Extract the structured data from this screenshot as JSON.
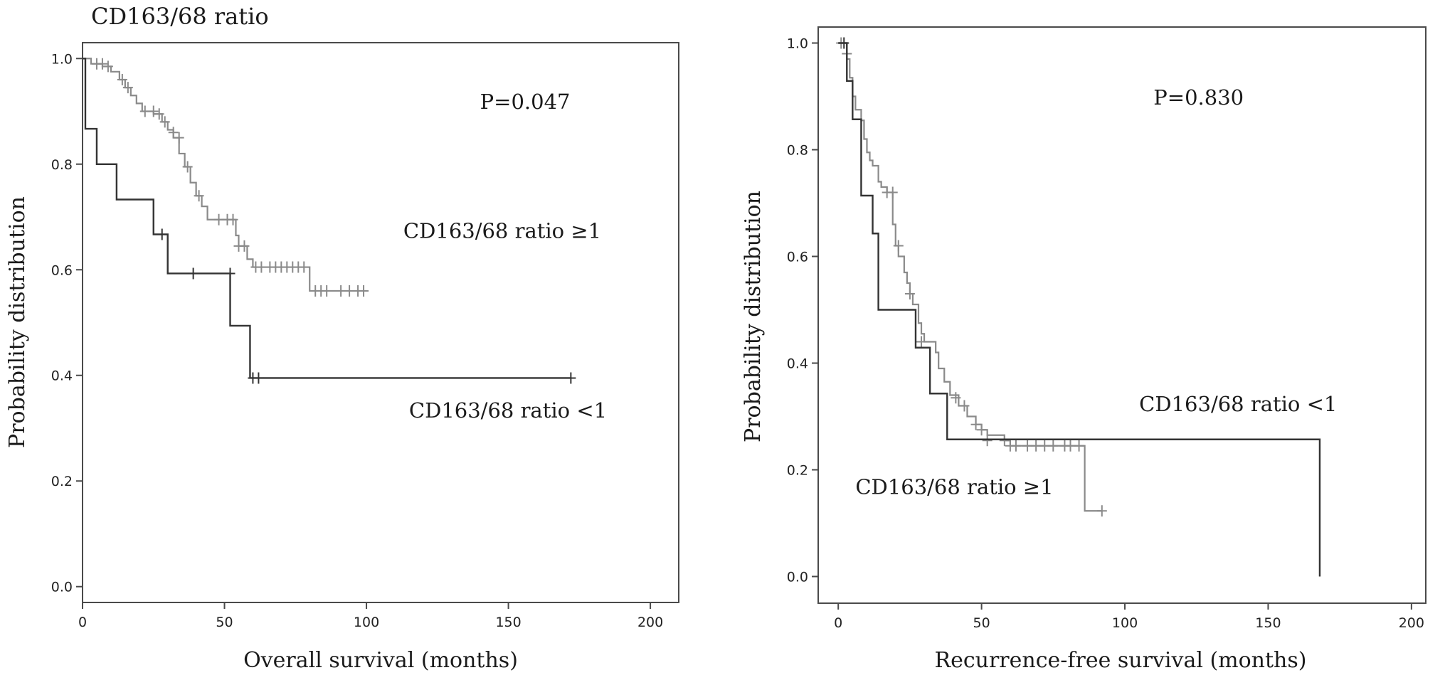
{
  "figure": {
    "title": "CD163/68  ratio"
  },
  "chart_data": [
    {
      "type": "line",
      "subtype": "kaplan-meier",
      "xlabel": "Overall survival (months)",
      "ylabel": "Probability distribution",
      "xlim": [
        0,
        210
      ],
      "ylim": [
        -0.03,
        1.03
      ],
      "xticks": [
        0,
        50,
        100,
        150,
        200
      ],
      "yticks": [
        0.0,
        0.2,
        0.4,
        0.6,
        0.8,
        1.0
      ],
      "xtick_labels": [
        "0",
        "50",
        "100",
        "150",
        "200"
      ],
      "ytick_labels": [
        "0.0",
        "0.2",
        "0.4",
        "0.6",
        "0.8",
        "1.0"
      ],
      "grid": false,
      "annotations": [
        {
          "text": "P=0.047",
          "x": 140,
          "y": 0.905
        },
        {
          "text": "CD163/68 ratio ≥1",
          "x": 113,
          "y": 0.66
        },
        {
          "text": "CD163/68 ratio <1",
          "x": 115,
          "y": 0.32
        }
      ],
      "series": [
        {
          "color": "#8a8a8a",
          "steps": [
            [
              0,
              1.0
            ],
            [
              3,
              0.99
            ],
            [
              7,
              0.985
            ],
            [
              10,
              0.975
            ],
            [
              13,
              0.96
            ],
            [
              15,
              0.945
            ],
            [
              17,
              0.93
            ],
            [
              19,
              0.915
            ],
            [
              21,
              0.9
            ],
            [
              25,
              0.895
            ],
            [
              28,
              0.88
            ],
            [
              30,
              0.865
            ],
            [
              32,
              0.85
            ],
            [
              34,
              0.82
            ],
            [
              36,
              0.795
            ],
            [
              38,
              0.765
            ],
            [
              40,
              0.74
            ],
            [
              42,
              0.72
            ],
            [
              44,
              0.695
            ],
            [
              54,
              0.665
            ],
            [
              55,
              0.645
            ],
            [
              58,
              0.62
            ],
            [
              60,
              0.605
            ],
            [
              80,
              0.56
            ],
            [
              100,
              0.56
            ]
          ],
          "censored": [
            [
              5,
              0.99
            ],
            [
              7,
              0.99
            ],
            [
              9,
              0.985
            ],
            [
              14,
              0.96
            ],
            [
              16,
              0.945
            ],
            [
              22,
              0.9
            ],
            [
              25,
              0.9
            ],
            [
              27,
              0.895
            ],
            [
              29,
              0.88
            ],
            [
              32,
              0.86
            ],
            [
              34,
              0.85
            ],
            [
              37,
              0.795
            ],
            [
              41,
              0.74
            ],
            [
              48,
              0.695
            ],
            [
              51,
              0.695
            ],
            [
              53,
              0.695
            ],
            [
              55,
              0.645
            ],
            [
              57,
              0.645
            ],
            [
              61,
              0.605
            ],
            [
              63,
              0.605
            ],
            [
              66,
              0.605
            ],
            [
              68,
              0.605
            ],
            [
              70,
              0.605
            ],
            [
              72,
              0.605
            ],
            [
              74,
              0.605
            ],
            [
              76,
              0.605
            ],
            [
              78,
              0.605
            ],
            [
              82,
              0.56
            ],
            [
              84,
              0.56
            ],
            [
              86,
              0.56
            ],
            [
              91,
              0.56
            ],
            [
              94,
              0.56
            ],
            [
              97,
              0.56
            ],
            [
              99,
              0.56
            ]
          ]
        },
        {
          "color": "#333333",
          "steps": [
            [
              0,
              1.0
            ],
            [
              1,
              0.867
            ],
            [
              5,
              0.8
            ],
            [
              12,
              0.733
            ],
            [
              25,
              0.667
            ],
            [
              30,
              0.593
            ],
            [
              52,
              0.494
            ],
            [
              59,
              0.395
            ],
            [
              172,
              0.395
            ]
          ],
          "censored": [
            [
              28,
              0.667
            ],
            [
              39,
              0.593
            ],
            [
              52,
              0.593
            ],
            [
              60,
              0.395
            ],
            [
              62,
              0.395
            ],
            [
              172,
              0.395
            ]
          ]
        }
      ]
    },
    {
      "type": "line",
      "subtype": "kaplan-meier",
      "xlabel": "Recurrence-free survival (months)",
      "ylabel": "Probability distribution",
      "xlim": [
        -7,
        205
      ],
      "ylim": [
        -0.05,
        1.03
      ],
      "xticks": [
        0,
        50,
        100,
        150,
        200
      ],
      "yticks": [
        0.0,
        0.2,
        0.4,
        0.6,
        0.8,
        1.0
      ],
      "xtick_labels": [
        "0",
        "50",
        "100",
        "150",
        "200"
      ],
      "ytick_labels": [
        "0.0",
        "0.2",
        "0.4",
        "0.6",
        "0.8",
        "1.0"
      ],
      "grid": false,
      "annotations": [
        {
          "text": "P=0.830",
          "x": 110,
          "y": 0.885
        },
        {
          "text": "CD163/68 ratio <1",
          "x": 105,
          "y": 0.31
        },
        {
          "text": "CD163/68 ratio ≥1",
          "x": 6,
          "y": 0.155
        }
      ],
      "series": [
        {
          "color": "#8a8a8a",
          "steps": [
            [
              0,
              1.0
            ],
            [
              3,
              0.97
            ],
            [
              4,
              0.935
            ],
            [
              5,
              0.9
            ],
            [
              6,
              0.875
            ],
            [
              8,
              0.855
            ],
            [
              9,
              0.82
            ],
            [
              10,
              0.795
            ],
            [
              11,
              0.78
            ],
            [
              12,
              0.77
            ],
            [
              14,
              0.74
            ],
            [
              15,
              0.73
            ],
            [
              17,
              0.72
            ],
            [
              19,
              0.66
            ],
            [
              20,
              0.62
            ],
            [
              21,
              0.6
            ],
            [
              23,
              0.57
            ],
            [
              24,
              0.55
            ],
            [
              25,
              0.53
            ],
            [
              26,
              0.51
            ],
            [
              28,
              0.475
            ],
            [
              29,
              0.455
            ],
            [
              30,
              0.44
            ],
            [
              34,
              0.42
            ],
            [
              35,
              0.39
            ],
            [
              37,
              0.365
            ],
            [
              39,
              0.34
            ],
            [
              42,
              0.32
            ],
            [
              45,
              0.3
            ],
            [
              48,
              0.285
            ],
            [
              50,
              0.275
            ],
            [
              52,
              0.265
            ],
            [
              58,
              0.255
            ],
            [
              60,
              0.245
            ],
            [
              86,
              0.123
            ],
            [
              92,
              0.123
            ]
          ],
          "censored": [
            [
              1,
              1.0
            ],
            [
              3,
              0.98
            ],
            [
              17,
              0.72
            ],
            [
              19,
              0.72
            ],
            [
              21,
              0.62
            ],
            [
              25,
              0.53
            ],
            [
              29,
              0.44
            ],
            [
              41,
              0.335
            ],
            [
              44,
              0.32
            ],
            [
              48,
              0.285
            ],
            [
              50,
              0.275
            ],
            [
              52,
              0.255
            ],
            [
              58,
              0.255
            ],
            [
              60,
              0.245
            ],
            [
              62,
              0.245
            ],
            [
              66,
              0.245
            ],
            [
              69,
              0.245
            ],
            [
              72,
              0.245
            ],
            [
              75,
              0.245
            ],
            [
              79,
              0.245
            ],
            [
              81,
              0.245
            ],
            [
              84,
              0.245
            ],
            [
              92,
              0.123
            ]
          ]
        },
        {
          "color": "#333333",
          "steps": [
            [
              0,
              1.0
            ],
            [
              3,
              0.929
            ],
            [
              5,
              0.857
            ],
            [
              8,
              0.714
            ],
            [
              12,
              0.643
            ],
            [
              14,
              0.5
            ],
            [
              27,
              0.429
            ],
            [
              32,
              0.343
            ],
            [
              38,
              0.257
            ],
            [
              168,
              0.257
            ],
            [
              168,
              0.0
            ]
          ],
          "censored": [
            [
              2,
              1.0
            ]
          ]
        }
      ]
    }
  ]
}
